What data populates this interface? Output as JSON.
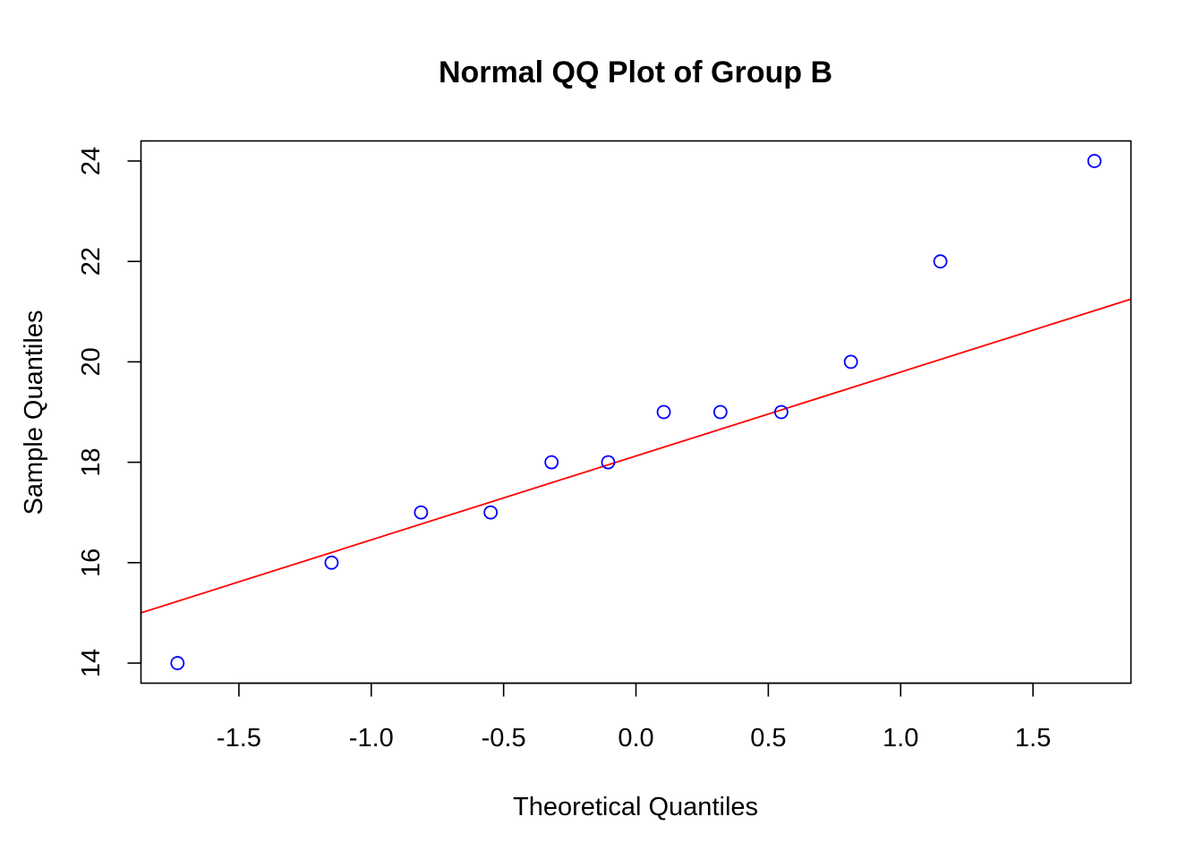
{
  "chart_data": {
    "type": "scatter",
    "title": "Normal QQ Plot of Group B",
    "xlabel": "Theoretical Quantiles",
    "ylabel": "Sample Quantiles",
    "xlim": [
      -1.87,
      1.87
    ],
    "ylim": [
      13.6,
      24.4
    ],
    "x_ticks": [
      -1.5,
      -1.0,
      -0.5,
      0.0,
      0.5,
      1.0,
      1.5
    ],
    "x_tick_labels": [
      "-1.5",
      "-1.0",
      "-0.5",
      "0.0",
      "0.5",
      "1.0",
      "1.5"
    ],
    "y_ticks": [
      14,
      16,
      18,
      20,
      22,
      24
    ],
    "y_tick_labels": [
      "14",
      "16",
      "18",
      "20",
      "22",
      "24"
    ],
    "grid": false,
    "legend": "none",
    "points": [
      {
        "x": -1.732,
        "y": 14
      },
      {
        "x": -1.15,
        "y": 16
      },
      {
        "x": -0.812,
        "y": 17
      },
      {
        "x": -0.549,
        "y": 17
      },
      {
        "x": -0.319,
        "y": 18
      },
      {
        "x": -0.105,
        "y": 18
      },
      {
        "x": 0.105,
        "y": 19
      },
      {
        "x": 0.319,
        "y": 19
      },
      {
        "x": 0.549,
        "y": 19
      },
      {
        "x": 0.812,
        "y": 20
      },
      {
        "x": 1.15,
        "y": 22
      },
      {
        "x": 1.732,
        "y": 24
      }
    ],
    "reference_line": {
      "x": [
        -1.87,
        1.87
      ],
      "y": [
        15.0,
        21.25
      ]
    },
    "point_color": "#0000ff",
    "line_color": "#ff0000"
  }
}
